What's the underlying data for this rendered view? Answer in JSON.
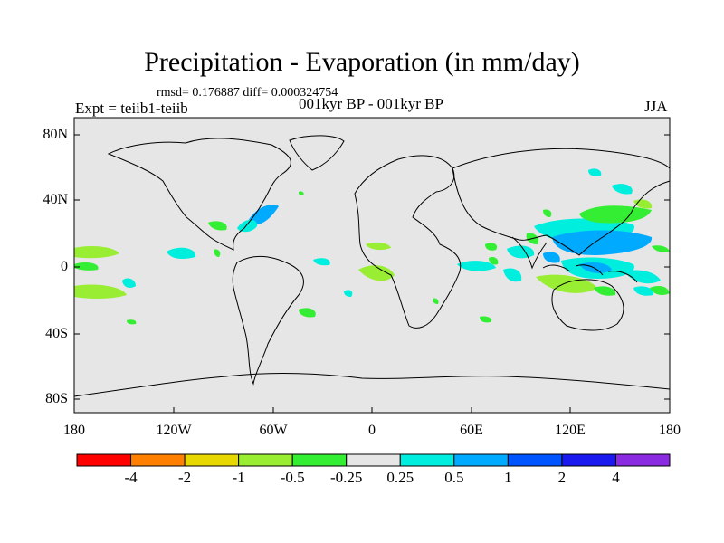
{
  "title": "Precipitation - Evaporation (in mm/day)",
  "stats": "rmsd= 0.176887  diff= 0.000324754",
  "experiment": "Expt = teiib1-teiib",
  "period": "001kyr BP - 001kyr BP",
  "season": "JJA",
  "y_ticks": [
    "80N",
    "40N",
    "0",
    "40S",
    "80S"
  ],
  "x_ticks": [
    "180",
    "120W",
    "60W",
    "0",
    "60E",
    "120E",
    "180"
  ],
  "colorbar": {
    "colors": [
      "#ff0000",
      "#ff8000",
      "#e6d800",
      "#99ee33",
      "#33ee33",
      "#e6e6e6",
      "#00eedd",
      "#00aaff",
      "#0055ff",
      "#1a1aee",
      "#8a2be2"
    ],
    "labels": [
      "-4",
      "-2",
      "-1",
      "-0.5",
      "-0.25",
      "0.25",
      "0.5",
      "1",
      "2",
      "4"
    ]
  },
  "colors": {
    "background": "#e6e6e6",
    "coast": "#000000"
  }
}
